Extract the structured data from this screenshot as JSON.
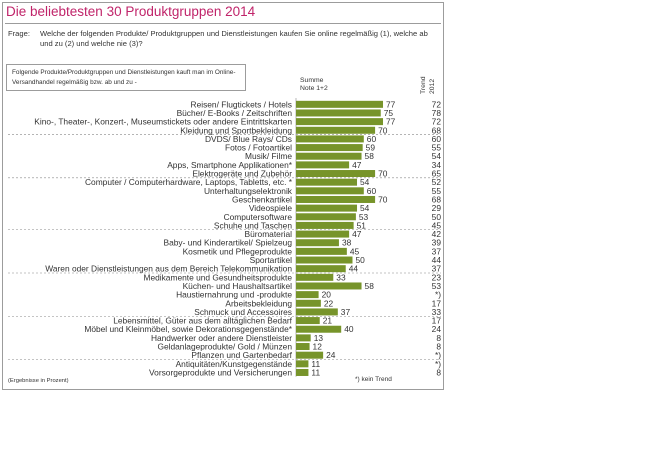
{
  "title": "Die beliebtesten 30 Produktgruppen 2014",
  "question_label": "Frage:",
  "question_text": "Welche der folgenden Produkte/ Produktgruppen und Dienstleistungen kaufen Sie online regelmäßig (1), welche ab und zu (2) und welche nie (3)?",
  "note_box": "Folgende Produkte/Produktgruppen und Dienstleistungen kauft man im Online-Versandhandel regelmäßig bzw. ab und zu -",
  "sum_label_line1": "Summe",
  "sum_label_line2": "Note 1+2",
  "trend_header_line1": "Trend",
  "trend_header_line2": "2012",
  "footnote": "(Ergebnisse in Prozent)",
  "no_trend_note": "*) kein Trend",
  "colors": {
    "bar": "#77942a",
    "title": "#c0246a",
    "separator": "#888888"
  },
  "chart_data": {
    "type": "bar",
    "orientation": "horizontal",
    "title": "Die beliebtesten 30 Produktgruppen 2014",
    "categories": [
      "Reisen/ Flugtickets / Hotels",
      "Bücher/ E-Books / Zeitschriften",
      "Kino-, Theater-, Konzert-, Museumstickets oder andere Eintrittskarten",
      "Kleidung und Sportbekleidung",
      "DVDS/ Blue Rays/ CDs",
      "Fotos / Fotoartikel",
      "Musik/ Filme",
      "Apps, Smartphone  Applikationen*",
      "Elektrogeräte und Zubehör",
      "Computer / Computerhardware, Laptops, Tabletts, etc. *",
      "Unterhaltungselektronik",
      "Geschenkartikel",
      "Videospiele",
      "Computersoftware",
      "Schuhe und Taschen",
      "Büromaterial",
      "Baby- und Kinderartikel/ Spielzeug",
      "Kosmetik und Pflegeprodukte",
      "Sportartikel",
      "Waren oder Dienstleistungen aus dem Bereich Telekommunikation",
      "Medikamente und Gesundheitsprodukte",
      "Küchen- und Haushaltsartikel",
      "Haustiernahrung und -produkte",
      "Arbeitsbekleidung",
      "Schmuck und Accessoires",
      "Lebensmittel, Güter aus dem alltäglichen Bedarf",
      "Möbel und Kleinmöbel, sowie Dekorationsgegenstände*",
      "Handwerker oder andere Dienstleister",
      "Geldanlageprodukte/ Gold / Münzen",
      "Pflanzen und Gartenbedarf",
      "Antiquitäten/Kunstgegenstände",
      "Vorsorgeprodukte und Versicherungen"
    ],
    "values": [
      77,
      75,
      77,
      70,
      60,
      59,
      58,
      47,
      70,
      54,
      60,
      70,
      54,
      53,
      51,
      47,
      38,
      45,
      50,
      44,
      33,
      58,
      20,
      22,
      37,
      21,
      40,
      13,
      12,
      24,
      11,
      11
    ],
    "trend_2012": [
      "72",
      "78",
      "72",
      "68",
      "60",
      "55",
      "54",
      "34",
      "65",
      "52",
      "55",
      "68",
      "29",
      "50",
      "45",
      "42",
      "39",
      "37",
      "44",
      "37",
      "23",
      "53",
      "*)",
      "17",
      "33",
      "17",
      "24",
      "8",
      "8",
      "*)",
      "*)",
      "8"
    ],
    "separator_after": [
      3,
      8,
      14,
      19,
      24,
      29
    ],
    "xlim": [
      0,
      100
    ],
    "xlabel": "",
    "ylabel": "",
    "grid": false,
    "unit": "Prozent"
  }
}
